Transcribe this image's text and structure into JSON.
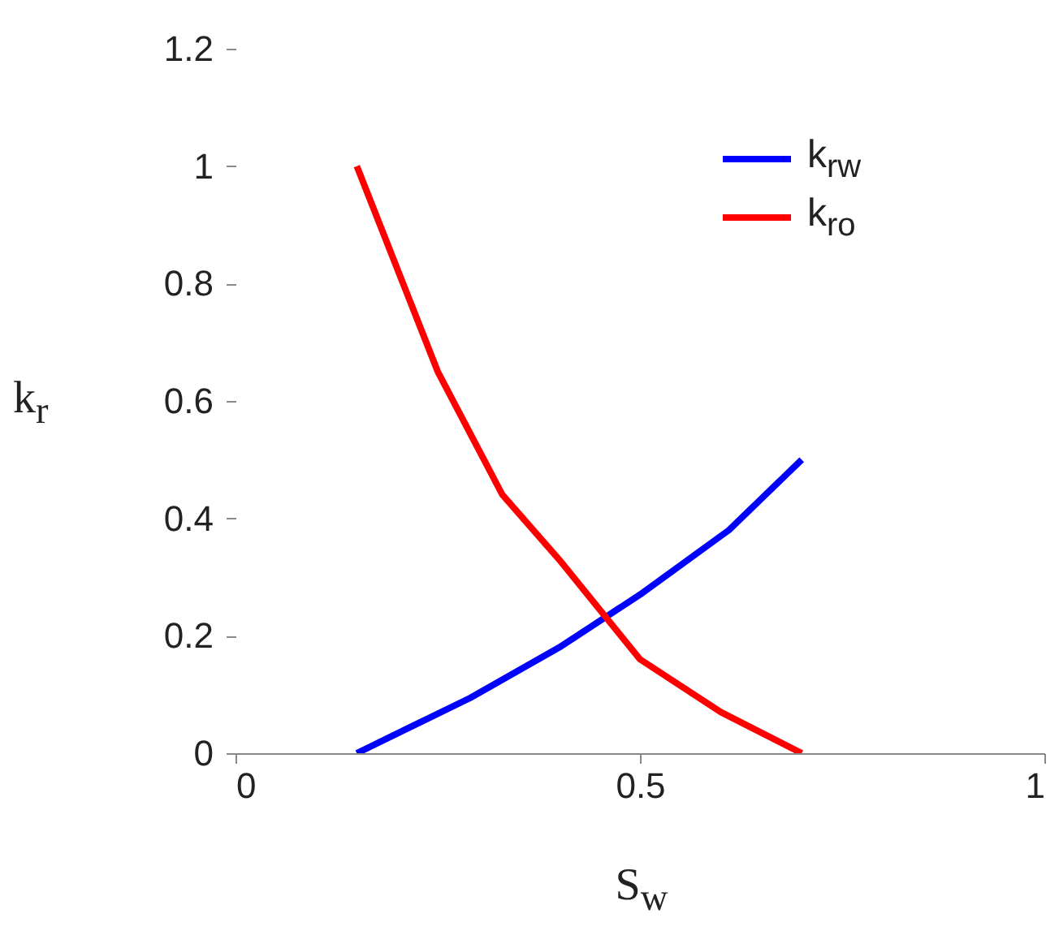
{
  "chart_data": {
    "type": "line",
    "xlabel": "S$_{w}$",
    "ylabel": "k$_{r}$",
    "xlim": [
      0,
      1
    ],
    "xticks": [
      0,
      0.5,
      1
    ],
    "ylim": [
      0,
      1.2
    ],
    "yticks": [
      0,
      0.2,
      0.4,
      0.6,
      0.8,
      1,
      1.2
    ],
    "grid": false,
    "legend": "top right",
    "series": [
      {
        "name": "k$_{rw}$",
        "color": "#0000ff",
        "x": [
          0.15,
          0.29,
          0.4,
          0.5,
          0.61,
          0.7
        ],
        "values": [
          0,
          0.094,
          0.18,
          0.27,
          0.38,
          0.5
        ]
      },
      {
        "name": "k$_{ro}$",
        "color": "#ff0000",
        "x": [
          0.15,
          0.25,
          0.33,
          0.4,
          0.5,
          0.6,
          0.7
        ],
        "values": [
          1,
          0.65,
          0.44,
          0.33,
          0.16,
          0.07,
          0
        ]
      }
    ]
  }
}
